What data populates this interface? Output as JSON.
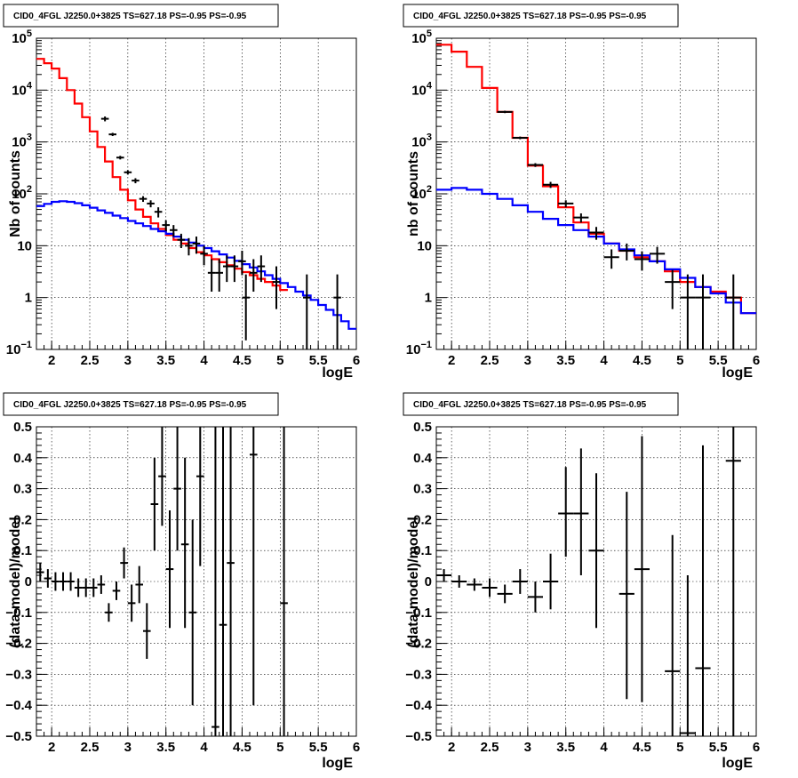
{
  "chart_data": [
    {
      "type": "line",
      "title": "CID0_4FGL J2250.0+3825 TS=627.18 PS=-0.95 PS=-0.95",
      "xlabel": "logE",
      "ylabel": "Nb of counts",
      "xlim": [
        1.8,
        6.0
      ],
      "ylim": [
        0.1,
        100000
      ],
      "yscale": "log",
      "grid": true,
      "xticks": [
        "2",
        "2.5",
        "3",
        "3.5",
        "4",
        "4.5",
        "5",
        "5.5",
        "6"
      ],
      "yticks": [
        {
          "v": 0.1,
          "base": "10",
          "exp": "−1"
        },
        {
          "v": 1,
          "label": "1"
        },
        {
          "v": 10,
          "label": "10"
        },
        {
          "v": 100,
          "base": "10",
          "exp": "2"
        },
        {
          "v": 1000,
          "base": "10",
          "exp": "3"
        },
        {
          "v": 10000,
          "base": "10",
          "exp": "4"
        },
        {
          "v": 100000,
          "base": "10",
          "exp": "5"
        }
      ],
      "binwidth": 0.1,
      "series": [
        {
          "color": "#ff0000",
          "x": [
            1.8,
            1.9,
            2.0,
            2.1,
            2.2,
            2.3,
            2.4,
            2.5,
            2.6,
            2.7,
            2.8,
            2.9,
            3.0,
            3.1,
            3.2,
            3.3,
            3.4,
            3.5,
            3.6,
            3.7,
            3.8,
            3.9,
            4.0,
            4.1,
            4.2,
            4.3,
            4.4,
            4.5,
            4.6,
            4.7,
            4.8,
            4.9,
            5.0
          ],
          "values": [
            40000,
            33000,
            26000,
            17000,
            10000,
            5500,
            3000,
            1600,
            800,
            420,
            210,
            120,
            75,
            50,
            36,
            27,
            21,
            16,
            13,
            11,
            9,
            7.5,
            6.5,
            5.5,
            4.8,
            4.2,
            3.6,
            3.1,
            2.7,
            2.3,
            2.0,
            1.7,
            1.4
          ]
        },
        {
          "color": "#0000ff",
          "x": [
            1.8,
            1.9,
            2.0,
            2.1,
            2.2,
            2.3,
            2.4,
            2.5,
            2.6,
            2.7,
            2.8,
            2.9,
            3.0,
            3.1,
            3.2,
            3.3,
            3.4,
            3.5,
            3.6,
            3.7,
            3.8,
            3.9,
            4.0,
            4.1,
            4.2,
            4.3,
            4.4,
            4.5,
            4.6,
            4.7,
            4.8,
            4.9,
            5.0,
            5.1,
            5.2,
            5.3,
            5.4,
            5.5,
            5.6,
            5.7,
            5.8,
            5.9
          ],
          "values": [
            58,
            64,
            70,
            72,
            70,
            66,
            60,
            54,
            48,
            43,
            38,
            34,
            30,
            27,
            24,
            21,
            19,
            17,
            15,
            13,
            11.5,
            10,
            9,
            7.8,
            6.8,
            5.9,
            5.1,
            4.4,
            3.8,
            3.2,
            2.7,
            2.3,
            1.9,
            1.6,
            1.3,
            1.1,
            0.9,
            0.72,
            0.58,
            0.46,
            0.35,
            0.25
          ]
        }
      ],
      "points": {
        "x": [
          2.7,
          2.8,
          2.9,
          3.0,
          3.1,
          3.2,
          3.3,
          3.4,
          3.5,
          3.6,
          3.7,
          3.8,
          3.9,
          4.0,
          4.1,
          4.2,
          4.3,
          4.4,
          4.5,
          4.55,
          4.65,
          4.75,
          4.95,
          5.35,
          5.75
        ],
        "y": [
          2800,
          1400,
          500,
          260,
          180,
          80,
          65,
          45,
          25,
          20,
          13,
          10,
          11,
          7,
          3,
          3,
          4,
          4,
          5,
          1,
          3,
          4,
          2,
          1,
          1
        ],
        "lo": [
          2500,
          1300,
          460,
          235,
          160,
          70,
          55,
          35,
          19,
          15,
          9,
          6.5,
          7,
          4.2,
          1.3,
          1.3,
          2,
          2,
          2.7,
          0.15,
          1.3,
          2,
          0.6,
          0.1,
          0.1
        ],
        "hi": [
          3100,
          1500,
          540,
          285,
          200,
          90,
          75,
          55,
          31,
          25,
          17,
          14,
          15,
          10,
          5.5,
          5.5,
          6.5,
          6.5,
          8,
          2.8,
          5.5,
          6.5,
          4,
          2.8,
          2.8
        ]
      }
    },
    {
      "type": "line",
      "title": "CID0_4FGL J2250.0+3825 TS=627.18 PS=-0.95 PS=-0.95",
      "xlabel": "logE",
      "ylabel": "nb of counts",
      "xlim": [
        1.8,
        6.0
      ],
      "ylim": [
        0.1,
        100000
      ],
      "yscale": "log",
      "grid": true,
      "xticks": [
        "2",
        "2.5",
        "3",
        "3.5",
        "4",
        "4.5",
        "5",
        "5.5",
        "6"
      ],
      "yticks": [
        {
          "v": 0.1,
          "base": "10",
          "exp": "−1"
        },
        {
          "v": 1,
          "label": "1"
        },
        {
          "v": 10,
          "label": "10"
        },
        {
          "v": 100,
          "base": "10",
          "exp": "2"
        },
        {
          "v": 1000,
          "base": "10",
          "exp": "3"
        },
        {
          "v": 10000,
          "base": "10",
          "exp": "4"
        },
        {
          "v": 100000,
          "base": "10",
          "exp": "5"
        }
      ],
      "binwidth": 0.2,
      "series": [
        {
          "color": "#ff0000",
          "x": [
            1.8,
            2.0,
            2.2,
            2.4,
            2.6,
            2.8,
            3.0,
            3.2,
            3.4,
            3.6,
            3.8,
            4.0,
            4.2,
            4.4,
            4.6,
            4.8,
            5.0,
            5.2,
            5.4,
            5.6,
            5.8
          ],
          "values": [
            75000,
            55000,
            28000,
            11000,
            3800,
            1200,
            350,
            140,
            55,
            28,
            17,
            11,
            8,
            6,
            5,
            3.2,
            2,
            1.6,
            1.3,
            1.0,
            0.5
          ]
        },
        {
          "color": "#0000ff",
          "x": [
            1.8,
            2.0,
            2.2,
            2.4,
            2.6,
            2.8,
            3.0,
            3.2,
            3.4,
            3.6,
            3.8,
            4.0,
            4.2,
            4.4,
            4.6,
            4.8,
            5.0,
            5.2,
            5.4,
            5.6,
            5.8
          ],
          "values": [
            120,
            130,
            120,
            100,
            80,
            60,
            45,
            33,
            25,
            20,
            15,
            11,
            8.5,
            6.5,
            5,
            3.5,
            2.4,
            1.6,
            1.2,
            0.8,
            0.5
          ]
        }
      ],
      "points": {
        "x": [
          2.7,
          2.9,
          3.1,
          3.3,
          3.5,
          3.7,
          3.9,
          4.1,
          4.3,
          4.5,
          4.7,
          4.9,
          5.1,
          5.3,
          5.7
        ],
        "y": [
          3800,
          1200,
          360,
          150,
          65,
          35,
          18,
          6,
          8,
          5.5,
          7,
          2,
          1,
          1,
          1
        ],
        "lo": [
          3600,
          1130,
          330,
          130,
          55,
          28,
          13,
          3.6,
          5.2,
          3.3,
          4.5,
          0.6,
          0.1,
          0.1,
          0.1
        ],
        "hi": [
          4000,
          1270,
          390,
          170,
          75,
          42,
          23,
          8.5,
          11,
          7.8,
          9.5,
          3.4,
          2.8,
          2.8,
          2.8
        ]
      }
    },
    {
      "type": "scatter",
      "title": "CID0_4FGL J2250.0+3825 TS=627.18 PS=-0.95 PS=-0.95",
      "xlabel": "logE",
      "ylabel": "(data-model)/model",
      "xlim": [
        1.8,
        6.0
      ],
      "ylim": [
        -0.5,
        0.5
      ],
      "grid": true,
      "xticks": [
        "2",
        "2.5",
        "3",
        "3.5",
        "4",
        "4.5",
        "5",
        "5.5",
        "6"
      ],
      "yticks": [
        "−0.5",
        "−0.4",
        "−0.3",
        "−0.2",
        "−0.1",
        "0",
        "0.1",
        "0.2",
        "0.3",
        "0.4",
        "0.5"
      ],
      "binwidth": 0.1,
      "points": {
        "x": [
          1.85,
          1.95,
          2.05,
          2.15,
          2.25,
          2.35,
          2.45,
          2.55,
          2.65,
          2.75,
          2.85,
          2.95,
          3.05,
          3.15,
          3.25,
          3.35,
          3.45,
          3.55,
          3.65,
          3.75,
          3.85,
          3.95,
          4.15,
          4.25,
          4.35,
          4.65,
          5.05
        ],
        "y": [
          0.03,
          0.01,
          0.0,
          0.0,
          0.0,
          -0.02,
          -0.02,
          -0.02,
          -0.01,
          -0.1,
          -0.03,
          0.06,
          -0.07,
          -0.01,
          -0.16,
          0.25,
          0.34,
          0.04,
          0.3,
          0.12,
          -0.1,
          0.34,
          -0.47,
          -0.14,
          0.06,
          0.41,
          -0.07
        ],
        "lo": [
          0.0,
          -0.02,
          -0.03,
          -0.03,
          -0.03,
          -0.05,
          -0.05,
          -0.05,
          -0.04,
          -0.13,
          -0.06,
          0.01,
          -0.13,
          -0.07,
          -0.25,
          0.1,
          0.18,
          -0.15,
          0.1,
          -0.15,
          -0.4,
          0.05,
          -0.52,
          -0.52,
          -0.52,
          -0.4,
          -0.52
        ],
        "hi": [
          0.06,
          0.04,
          0.03,
          0.03,
          0.03,
          0.01,
          0.01,
          0.01,
          0.02,
          -0.07,
          0.0,
          0.11,
          -0.01,
          0.05,
          -0.07,
          0.4,
          0.5,
          0.23,
          0.5,
          0.4,
          0.2,
          0.5,
          0.5,
          0.5,
          0.5,
          0.52,
          0.52
        ]
      }
    },
    {
      "type": "scatter",
      "title": "CID0_4FGL J2250.0+3825 TS=627.18 PS=-0.95 PS=-0.95",
      "xlabel": "logE",
      "ylabel": "(data-model)/model",
      "xlim": [
        1.8,
        6.0
      ],
      "ylim": [
        -0.5,
        0.5
      ],
      "grid": true,
      "xticks": [
        "2",
        "2.5",
        "3",
        "3.5",
        "4",
        "4.5",
        "5",
        "5.5",
        "6"
      ],
      "yticks": [
        "−0.5",
        "−0.4",
        "−0.3",
        "−0.2",
        "−0.1",
        "0",
        "0.1",
        "0.2",
        "0.3",
        "0.4",
        "0.5"
      ],
      "binwidth": 0.2,
      "points": {
        "x": [
          1.9,
          2.1,
          2.3,
          2.5,
          2.7,
          2.9,
          3.1,
          3.3,
          3.5,
          3.7,
          3.9,
          4.3,
          4.5,
          4.9,
          5.1,
          5.3,
          5.7
        ],
        "y": [
          0.02,
          0.0,
          -0.01,
          -0.02,
          -0.04,
          0.0,
          -0.05,
          0.0,
          0.22,
          0.22,
          0.1,
          -0.04,
          0.04,
          -0.29,
          -0.49,
          -0.28,
          0.39
        ],
        "lo": [
          0.0,
          -0.02,
          -0.03,
          -0.05,
          -0.07,
          -0.04,
          -0.1,
          -0.09,
          0.08,
          0.02,
          -0.15,
          -0.38,
          -0.39,
          -0.52,
          -0.52,
          -0.52,
          -0.52
        ],
        "hi": [
          0.04,
          0.02,
          0.01,
          0.01,
          -0.01,
          0.04,
          0.0,
          0.09,
          0.37,
          0.43,
          0.35,
          0.29,
          0.47,
          0.15,
          0.02,
          0.44,
          0.52
        ]
      }
    }
  ]
}
